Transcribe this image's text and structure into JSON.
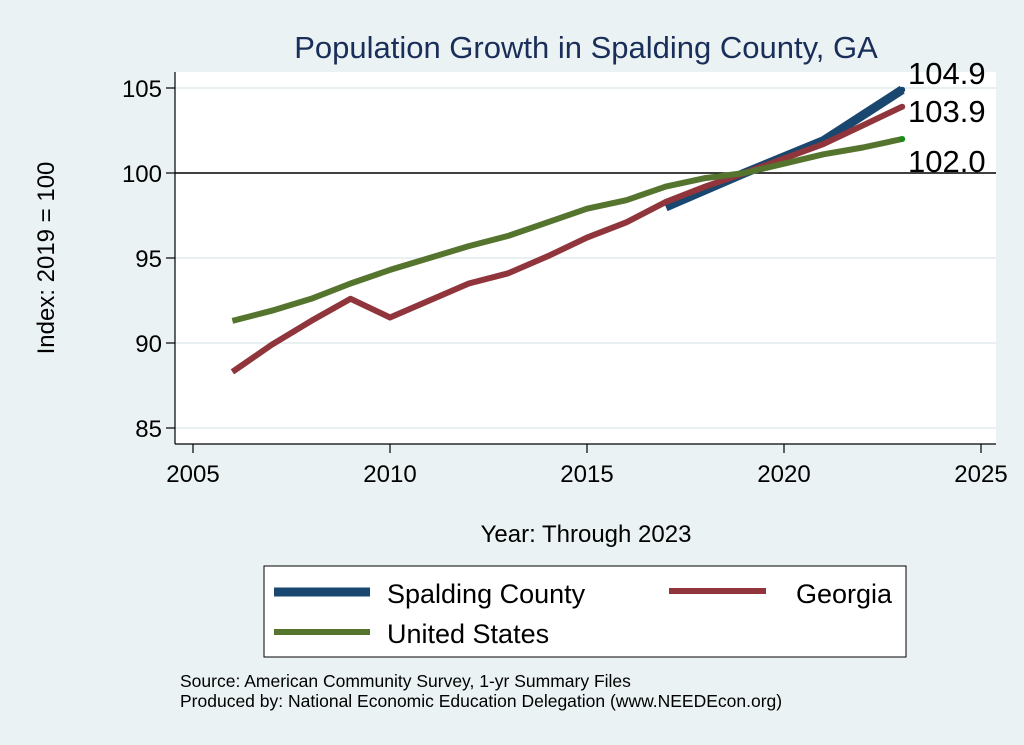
{
  "chart_data": {
    "type": "line",
    "title": "Population Growth in Spalding County, GA",
    "xlabel": "Year: Through 2023",
    "ylabel": "Index: 2019 = 100",
    "xlim": [
      2005,
      2025
    ],
    "ylim": [
      85,
      105
    ],
    "xticks": [
      2005,
      2010,
      2015,
      2020,
      2025
    ],
    "yticks": [
      85,
      90,
      95,
      100,
      105
    ],
    "reference_line": 100,
    "grid": true,
    "series": [
      {
        "name": "Spalding  County",
        "color": "#1a476f",
        "x": [
          2017,
          2018,
          2019,
          2021,
          2022,
          2023
        ],
        "y": [
          98.0,
          99.0,
          100.0,
          101.9,
          103.4,
          104.9
        ],
        "end_label": "104.9"
      },
      {
        "name": "Georgia",
        "color": "#90353b",
        "x": [
          2006,
          2007,
          2008,
          2009,
          2010,
          2011,
          2012,
          2013,
          2014,
          2015,
          2016,
          2017,
          2018,
          2019,
          2021,
          2022,
          2023
        ],
        "y": [
          88.3,
          89.9,
          91.3,
          92.6,
          91.5,
          92.5,
          93.5,
          94.1,
          95.1,
          96.2,
          97.1,
          98.3,
          99.2,
          100.0,
          101.7,
          102.8,
          103.9
        ],
        "end_label": "103.9"
      },
      {
        "name": "United States",
        "color": "#55752f",
        "x": [
          2006,
          2007,
          2008,
          2009,
          2010,
          2011,
          2012,
          2013,
          2014,
          2015,
          2016,
          2017,
          2018,
          2019,
          2021,
          2022,
          2023
        ],
        "y": [
          91.3,
          91.9,
          92.6,
          93.5,
          94.3,
          95.0,
          95.7,
          96.3,
          97.1,
          97.9,
          98.4,
          99.2,
          99.7,
          100.0,
          101.1,
          101.5,
          102.0
        ],
        "end_label": "102.0"
      }
    ],
    "legend": {
      "position": "bottom",
      "entries": [
        "Spalding  County",
        "Georgia",
        "United States"
      ]
    }
  },
  "notes": {
    "source": "Source: American Community Survey, 1-yr Summary Files",
    "produced_by": "Produced by: National Economic Education Delegation (www.NEEDEcon.org)"
  }
}
